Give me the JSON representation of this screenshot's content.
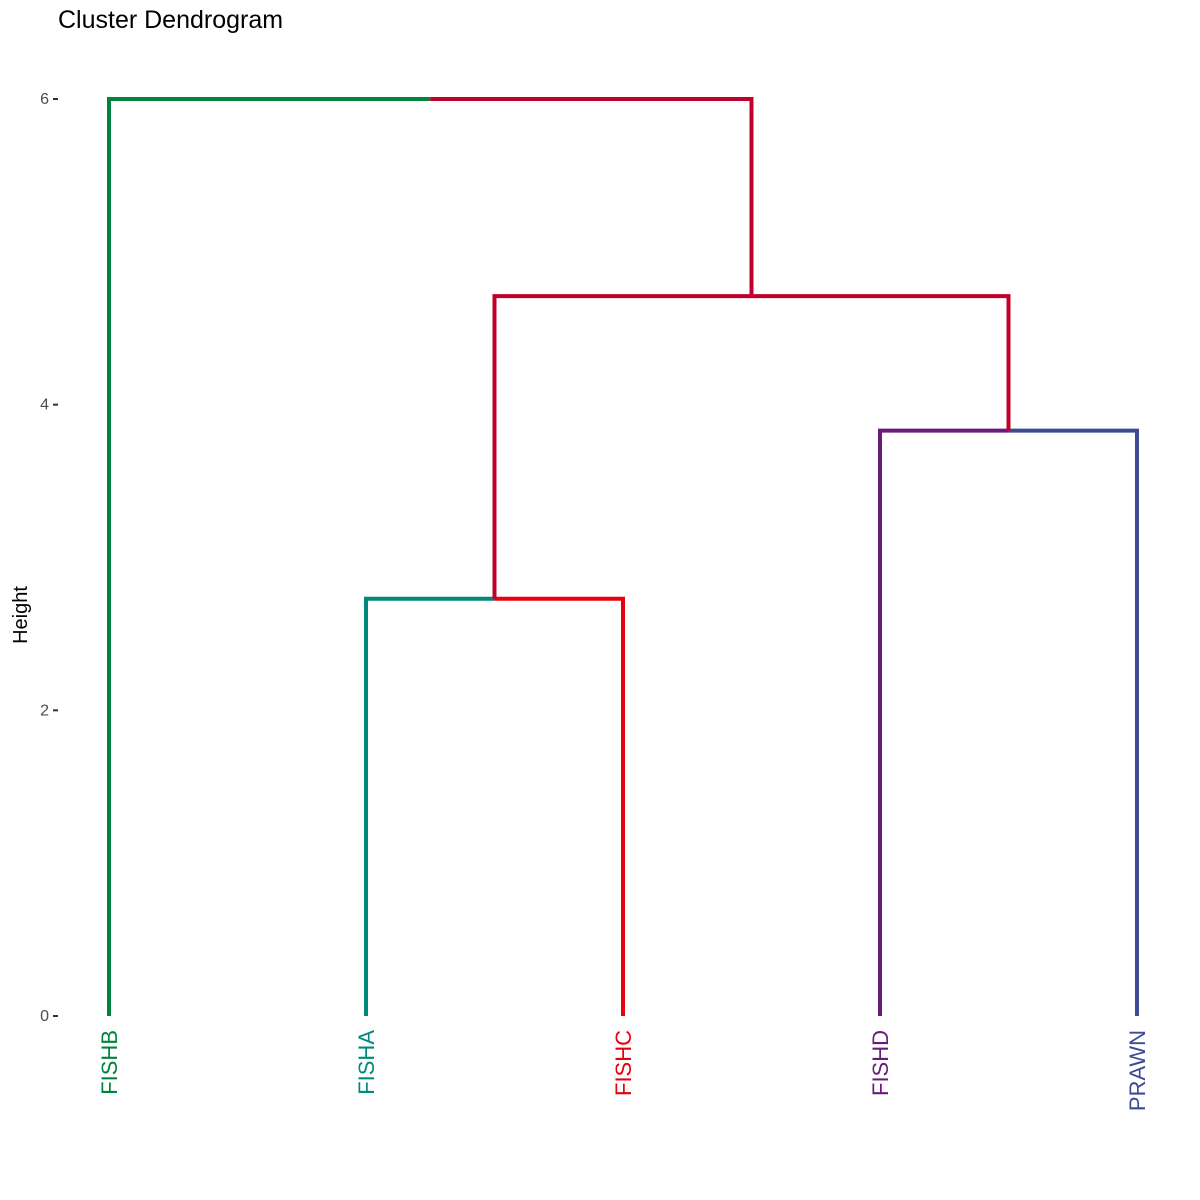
{
  "chart_data": {
    "type": "dendrogram",
    "title": "Cluster Dendrogram",
    "ylabel": "Height",
    "xlabel": "",
    "ylim": [
      0,
      6
    ],
    "y_ticks": [
      0,
      2,
      4,
      6
    ],
    "grid": false,
    "leaves": [
      {
        "label": "FISHB",
        "color": "#00843D"
      },
      {
        "label": "FISHA",
        "color": "#00897B"
      },
      {
        "label": "FISHC",
        "color": "#E8000B"
      },
      {
        "label": "FISHD",
        "color": "#6A1B7A"
      },
      {
        "label": "PRAWN",
        "color": "#3F4A94"
      }
    ],
    "merges": [
      {
        "id": "m1",
        "left": "FISHA",
        "right": "FISHC",
        "height": 2.73,
        "color_left": "#00897B",
        "color_right": "#E8000B"
      },
      {
        "id": "m2",
        "left": "FISHD",
        "right": "PRAWN",
        "height": 3.83,
        "color_left": "#6A1B7A",
        "color_right": "#3F4A94"
      },
      {
        "id": "m3",
        "left": "m1",
        "right": "m2",
        "height": 4.71,
        "color_left": "#C0002A",
        "color_right": "#C0002A"
      },
      {
        "id": "m4",
        "left": "FISHB",
        "right": "m3",
        "height": 6.0,
        "color_left": "#00843D",
        "color_right": "#C0002A"
      }
    ]
  }
}
